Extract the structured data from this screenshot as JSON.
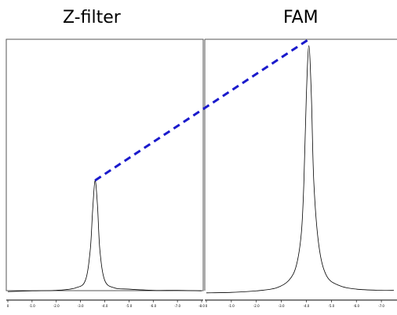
{
  "titles": {
    "left": "Z-filter",
    "right": "FAM"
  },
  "chart_data": [
    {
      "type": "line",
      "title": "Z-filter",
      "xlabel": "",
      "ylabel": "",
      "xlim": [
        0.0,
        -8.0
      ],
      "x_ticks": [
        "0",
        "-1.0",
        "-2.0",
        "-3.0",
        "-4.0",
        "-5.0",
        "-6.0",
        "-7.0",
        "-8.0"
      ],
      "grid": false,
      "series": [
        {
          "values_relative_to_right_peak": 0.46,
          "peak_position": -3.6,
          "x": [
            0.0,
            -1.0,
            -2.0,
            -2.8,
            -3.2,
            -3.4,
            -3.5,
            -3.6,
            -3.7,
            -3.8,
            -4.0,
            -4.4,
            -5.0,
            -6.0,
            -7.0,
            -8.0
          ],
          "y": [
            0.015,
            0.018,
            0.02,
            0.03,
            0.06,
            0.18,
            0.34,
            0.46,
            0.36,
            0.18,
            0.06,
            0.03,
            0.025,
            0.02,
            0.02,
            0.018
          ]
        }
      ]
    },
    {
      "type": "line",
      "title": "FAM",
      "xlabel": "",
      "ylabel": "",
      "xlim": [
        0.0,
        -7.5
      ],
      "x_ticks": [
        "0",
        "-1.0",
        "-2.0",
        "-3.0",
        "-4.0",
        "-5.0",
        "-6.0",
        "-7.0"
      ],
      "grid": false,
      "series": [
        {
          "peak_position": -4.1,
          "x": [
            0.0,
            -1.0,
            -2.0,
            -2.8,
            -3.3,
            -3.6,
            -3.8,
            -3.9,
            -4.0,
            -4.1,
            -4.2,
            -4.3,
            -4.5,
            -4.8,
            -5.3,
            -6.0,
            -7.0,
            -7.5
          ],
          "y": [
            0.01,
            0.012,
            0.018,
            0.03,
            0.06,
            0.12,
            0.25,
            0.45,
            0.8,
            1.0,
            0.8,
            0.45,
            0.2,
            0.08,
            0.04,
            0.025,
            0.02,
            0.02
          ]
        }
      ]
    }
  ],
  "connector": {
    "color": "#1a1acc",
    "style": "dashed"
  }
}
